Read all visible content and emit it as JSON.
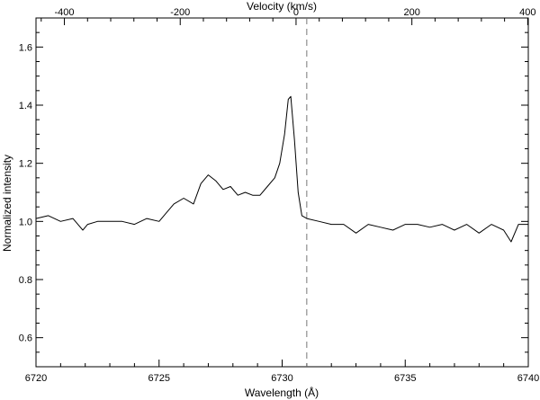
{
  "chart_data": {
    "type": "line",
    "xlabel": "Wavelength (Å)",
    "ylabel": "Normalized intensity",
    "top_axis_label": "Velocity (km/s)",
    "xlim": [
      6720,
      6740
    ],
    "ylim": [
      0.5,
      1.7
    ],
    "top_axis_lim": [
      -449,
      401
    ],
    "x_ticks": [
      6720,
      6725,
      6730,
      6735,
      6740
    ],
    "y_ticks": [
      0.6,
      0.8,
      1.0,
      1.2,
      1.4,
      1.6
    ],
    "top_ticks": [
      -400,
      -200,
      0,
      200,
      400
    ],
    "reference_line": {
      "x": 6731.0,
      "style": "dashed",
      "color": "#777777"
    },
    "grid": false,
    "line_color": "#000000",
    "series": [
      {
        "x": [
          6720.0,
          6720.5,
          6721.0,
          6721.5,
          6721.9,
          6722.1,
          6722.5,
          6723.0,
          6723.5,
          6724.0,
          6724.5,
          6725.0,
          6725.3,
          6725.6,
          6726.0,
          6726.4,
          6726.7,
          6727.0,
          6727.3,
          6727.6,
          6727.9,
          6728.2,
          6728.5,
          6728.8,
          6729.1,
          6729.4,
          6729.7,
          6729.9,
          6730.1,
          6730.25,
          6730.35,
          6730.5,
          6730.65,
          6730.8,
          6731.0,
          6731.5,
          6732.0,
          6732.5,
          6733.0,
          6733.5,
          6734.0,
          6734.5,
          6735.0,
          6735.5,
          6736.0,
          6736.5,
          6737.0,
          6737.5,
          6738.0,
          6738.5,
          6739.0,
          6739.3,
          6739.6,
          6740.0
        ],
        "y": [
          1.01,
          1.02,
          1.0,
          1.01,
          0.97,
          0.99,
          1.0,
          1.0,
          1.0,
          0.99,
          1.01,
          1.0,
          1.03,
          1.06,
          1.08,
          1.06,
          1.13,
          1.16,
          1.14,
          1.11,
          1.12,
          1.09,
          1.1,
          1.09,
          1.09,
          1.12,
          1.15,
          1.2,
          1.3,
          1.42,
          1.43,
          1.28,
          1.1,
          1.02,
          1.01,
          1.0,
          0.99,
          0.99,
          0.96,
          0.99,
          0.98,
          0.97,
          0.99,
          0.99,
          0.98,
          0.99,
          0.97,
          0.99,
          0.96,
          0.99,
          0.97,
          0.93,
          0.99,
          0.99
        ]
      }
    ]
  }
}
